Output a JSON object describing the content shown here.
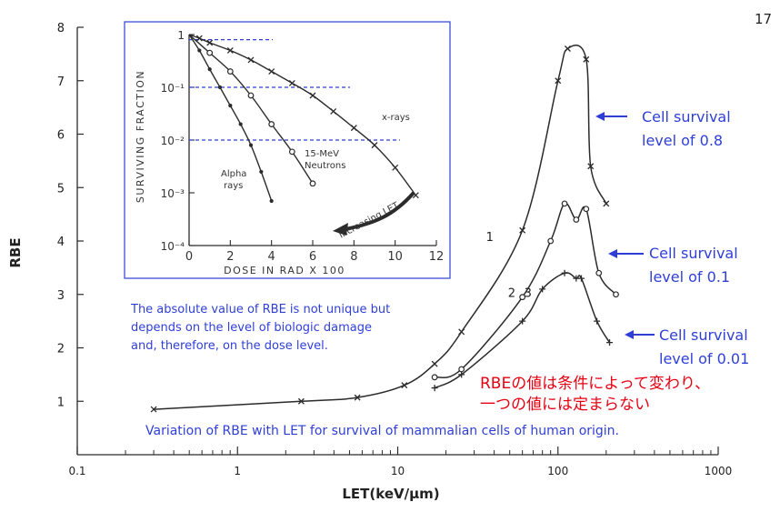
{
  "page_number": "17",
  "chart_data": [
    {
      "type": "line",
      "xscale": "log",
      "xlim": [
        0.1,
        1000
      ],
      "ylim": [
        0,
        8
      ],
      "xlabel": "LET(keV/μm)",
      "ylabel": "RBE",
      "x_ticks": [
        "0.1",
        "1",
        "10",
        "100",
        "1000"
      ],
      "y_ticks": [
        "1",
        "2",
        "3",
        "4",
        "5",
        "6",
        "7",
        "8"
      ],
      "series": [
        {
          "name": "1",
          "x": [
            0.3,
            2.5,
            5.6,
            11,
            17,
            25,
            60,
            100,
            115,
            150,
            160,
            200
          ],
          "y": [
            0.85,
            1.0,
            1.07,
            1.3,
            1.7,
            2.3,
            4.2,
            7.0,
            7.6,
            7.4,
            5.4,
            4.7
          ]
        },
        {
          "name": "2",
          "x": [
            17,
            25,
            60,
            90,
            110,
            130,
            150,
            180,
            230
          ],
          "y": [
            1.45,
            1.6,
            2.95,
            4.0,
            4.7,
            4.4,
            4.6,
            3.4,
            3.0
          ]
        },
        {
          "name": "3",
          "x": [
            17,
            25,
            60,
            80,
            110,
            130,
            140,
            175,
            210
          ],
          "y": [
            1.25,
            1.5,
            2.5,
            3.1,
            3.4,
            3.3,
            3.3,
            2.5,
            2.1
          ]
        }
      ],
      "series_labels": [
        "1",
        "2",
        "3"
      ]
    },
    {
      "type": "line",
      "yscale": "log",
      "xlim": [
        0,
        12
      ],
      "ylim": [
        0.0001,
        1
      ],
      "xlabel": "DOSE IN RAD X 100",
      "ylabel": "SURVIVING FRACTION",
      "x_ticks": [
        "0",
        "2",
        "4",
        "6",
        "8",
        "10",
        "12"
      ],
      "y_ticks": [
        "1",
        "10⁻¹",
        "10⁻²",
        "10⁻³",
        "10⁻⁴"
      ],
      "series": [
        {
          "name": "x-rays",
          "x": [
            0,
            0.5,
            1,
            2,
            3,
            4,
            5,
            6,
            7,
            8,
            9,
            10,
            11
          ],
          "y": [
            1,
            0.85,
            0.7,
            0.5,
            0.33,
            0.2,
            0.12,
            0.07,
            0.035,
            0.017,
            0.008,
            0.003,
            0.0009
          ]
        },
        {
          "name": "15-MeV Neutrons",
          "x": [
            0,
            1,
            2,
            3,
            4,
            5,
            6
          ],
          "y": [
            1,
            0.45,
            0.2,
            0.07,
            0.02,
            0.006,
            0.0015
          ]
        },
        {
          "name": "Alpha rays",
          "x": [
            0,
            0.5,
            1,
            1.5,
            2,
            2.5,
            3,
            3.5,
            4
          ],
          "y": [
            1,
            0.5,
            0.22,
            0.1,
            0.045,
            0.02,
            0.008,
            0.0025,
            0.0007
          ]
        }
      ],
      "annotations": [
        "x-rays",
        "15-MeV",
        "Neutrons",
        "Alpha",
        "rays",
        "Increasing LET"
      ]
    }
  ],
  "right_labels": [
    {
      "line1": "Cell survival",
      "line2": "level of 0.8"
    },
    {
      "line1": "Cell survival",
      "line2": "level of 0.1"
    },
    {
      "line1": "Cell survival",
      "line2": "level of 0.01"
    }
  ],
  "note_en": [
    "The absolute value of RBE is not unique but",
    "depends on the level of biologic damage",
    "and, therefore, on the dose level."
  ],
  "note_jp": [
    "RBEの値は条件によって変わり、",
    "一つの値には定まらない"
  ],
  "caption": "Variation of RBE with LET for survival of mammalian cells of human origin.",
  "colors": {
    "blue": "#2f3fd6",
    "red": "#e60012",
    "ink": "#2b2b2b"
  }
}
